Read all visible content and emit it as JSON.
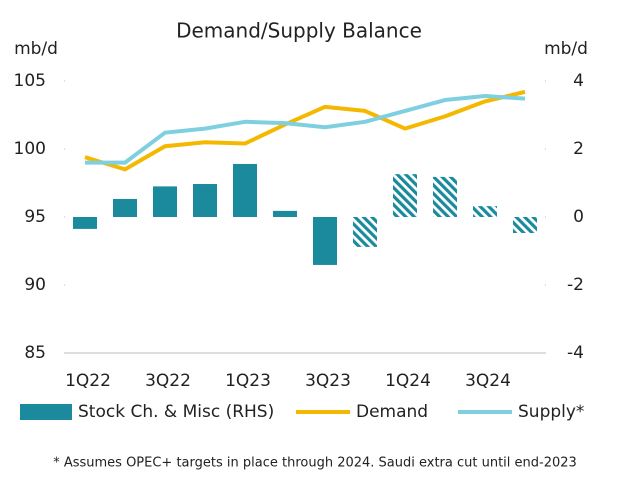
{
  "chart_data": {
    "type": "bar-line",
    "title": "Demand/Supply Balance",
    "ylabel": "mb/d",
    "y2label": "mb/d",
    "footnote": "* Assumes OPEC+ targets in place through 2024. Saudi extra cut until end-2023",
    "categories": [
      "1Q22",
      null,
      "3Q22",
      null,
      "1Q23",
      null,
      "3Q23",
      null,
      "1Q24",
      null,
      "3Q24",
      null
    ],
    "ylim": [
      85,
      105
    ],
    "yticks": [
      85,
      90,
      95,
      100,
      105
    ],
    "y2lim": [
      -4,
      4
    ],
    "y2ticks": [
      -4,
      -2,
      0,
      2,
      4
    ],
    "series": [
      {
        "name": "Stock Ch. & Misc (RHS)",
        "kind": "bar",
        "axis": "y2",
        "color": "#1a8a9c",
        "values": [
          -0.35,
          0.53,
          0.9,
          0.97,
          1.56,
          0.18,
          -1.41,
          -0.88,
          1.26,
          1.18,
          0.32,
          -0.47
        ],
        "hatched": [
          false,
          false,
          false,
          false,
          false,
          false,
          false,
          true,
          true,
          true,
          true,
          true
        ]
      },
      {
        "name": "Demand",
        "kind": "line",
        "axis": "y",
        "color": "#f5b800",
        "values": [
          99.4,
          98.5,
          100.2,
          100.5,
          100.4,
          101.8,
          103.1,
          102.8,
          101.5,
          102.4,
          103.5,
          104.2
        ]
      },
      {
        "name": "Supply*",
        "kind": "line",
        "axis": "y",
        "color": "#7ecfdf",
        "values": [
          99.0,
          99.0,
          101.2,
          101.5,
          102.0,
          101.9,
          101.6,
          102.0,
          102.8,
          103.6,
          103.9,
          103.7
        ]
      }
    ]
  }
}
